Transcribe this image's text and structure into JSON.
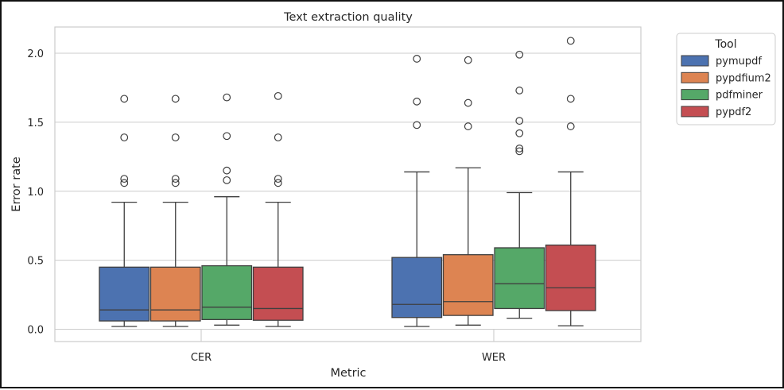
{
  "chart_data": {
    "type": "box",
    "title": "Text extraction quality",
    "xlabel": "Metric",
    "ylabel": "Error rate",
    "categories": [
      "CER",
      "WER"
    ],
    "ylim": [
      -0.09,
      2.2
    ],
    "yticks": [
      0.0,
      0.5,
      1.0,
      1.5,
      2.0
    ],
    "ytick_labels": [
      "0.0",
      "0.5",
      "1.0",
      "1.5",
      "2.0"
    ],
    "grid": true,
    "legend": {
      "title": "Tool",
      "placement": "outside-top-right"
    },
    "series": [
      {
        "name": "pymupdf",
        "color": "#4c72b0",
        "boxes": [
          {
            "whislo": 0.02,
            "q1": 0.06,
            "med": 0.14,
            "q3": 0.45,
            "whishi": 0.92,
            "fliers": [
              1.06,
              1.09,
              1.39,
              1.67
            ]
          },
          {
            "whislo": 0.02,
            "q1": 0.085,
            "med": 0.18,
            "q3": 0.52,
            "whishi": 1.14,
            "fliers": [
              1.48,
              1.65,
              1.96
            ]
          }
        ]
      },
      {
        "name": "pypdfium2",
        "color": "#dd8452",
        "boxes": [
          {
            "whislo": 0.02,
            "q1": 0.06,
            "med": 0.14,
            "q3": 0.45,
            "whishi": 0.92,
            "fliers": [
              1.06,
              1.09,
              1.39,
              1.67
            ]
          },
          {
            "whislo": 0.03,
            "q1": 0.1,
            "med": 0.2,
            "q3": 0.54,
            "whishi": 1.17,
            "fliers": [
              1.47,
              1.64,
              1.95
            ]
          }
        ]
      },
      {
        "name": "pdfminer",
        "color": "#55a868",
        "boxes": [
          {
            "whislo": 0.03,
            "q1": 0.07,
            "med": 0.16,
            "q3": 0.46,
            "whishi": 0.96,
            "fliers": [
              1.08,
              1.15,
              1.4,
              1.68
            ]
          },
          {
            "whislo": 0.08,
            "q1": 0.15,
            "med": 0.33,
            "q3": 0.59,
            "whishi": 0.99,
            "fliers": [
              1.29,
              1.31,
              1.42,
              1.51,
              1.73,
              1.99
            ]
          }
        ]
      },
      {
        "name": "pypdf2",
        "color": "#c44e52",
        "boxes": [
          {
            "whislo": 0.02,
            "q1": 0.065,
            "med": 0.15,
            "q3": 0.45,
            "whishi": 0.92,
            "fliers": [
              1.06,
              1.09,
              1.39,
              1.69
            ]
          },
          {
            "whislo": 0.025,
            "q1": 0.135,
            "med": 0.3,
            "q3": 0.61,
            "whishi": 1.14,
            "fliers": [
              1.47,
              1.67,
              2.09
            ]
          }
        ]
      }
    ]
  }
}
